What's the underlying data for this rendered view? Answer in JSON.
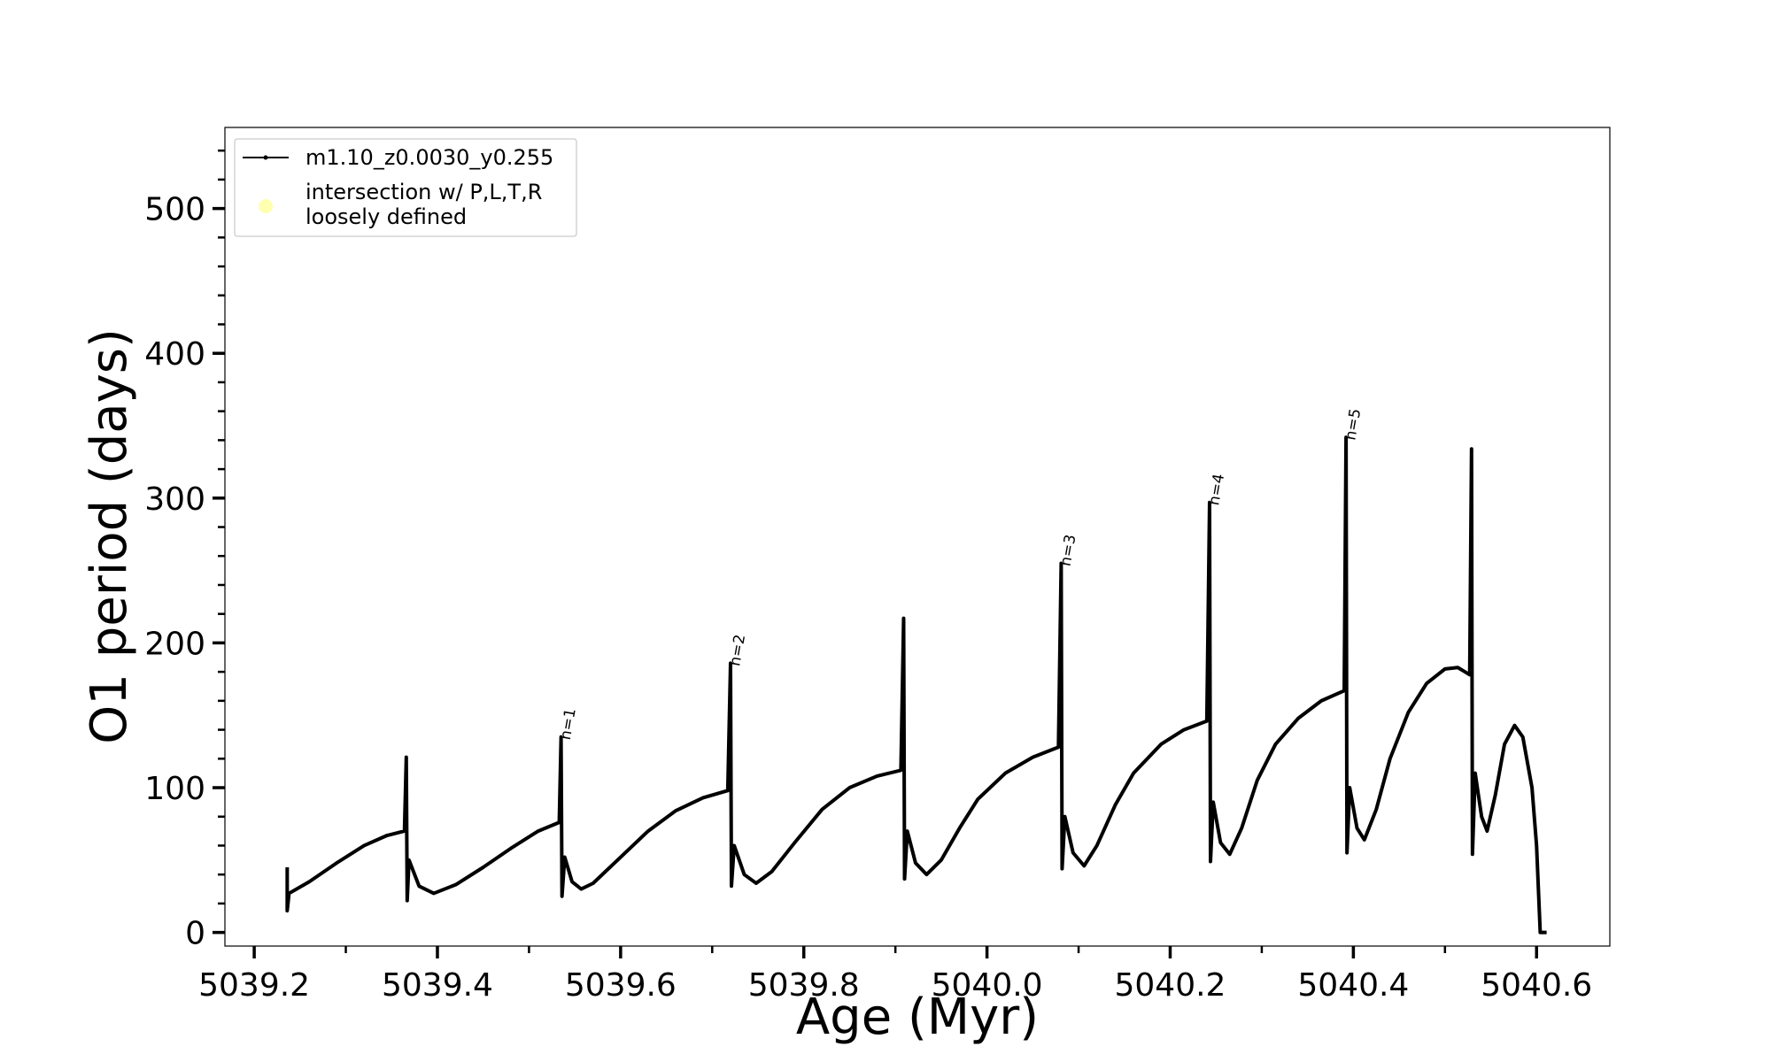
{
  "chart_data": {
    "type": "line",
    "xlabel": "Age (Myr)",
    "ylabel": "O1 period (days)",
    "xlim": [
      5039.168,
      5040.68
    ],
    "ylim": [
      -9.4,
      556
    ],
    "xticks": [
      5039.2,
      5039.4,
      5039.6,
      5039.8,
      {
        "value": 5040,
        "label": "5040.0"
      },
      5040.2,
      5040.4,
      5040.6
    ],
    "xminorticks": [
      5039.3,
      5039.5,
      5039.7,
      5039.9,
      5040.1,
      5040.3,
      5040.5
    ],
    "yticks": [
      0,
      100,
      200,
      300,
      400,
      500
    ],
    "yminorticks": [
      20,
      40,
      60,
      80,
      120,
      140,
      160,
      180,
      220,
      240,
      260,
      280,
      320,
      340,
      360,
      380,
      420,
      440,
      460,
      480,
      520,
      540
    ],
    "legend": "upper left",
    "series": [
      {
        "name": "m1.10_z0.0030_y0.255",
        "color": "#000000",
        "x": [
          5039.236,
          5039.236,
          5039.238,
          5039.26,
          5039.29,
          5039.32,
          5039.345,
          5039.364,
          5039.366,
          5039.367,
          5039.369,
          5039.38,
          5039.396,
          5039.42,
          5039.45,
          5039.48,
          5039.51,
          5039.533,
          5039.535,
          5039.536,
          5039.539,
          5039.547,
          5039.557,
          5039.57,
          5039.6,
          5039.63,
          5039.66,
          5039.69,
          5039.717,
          5039.72,
          5039.721,
          5039.724,
          5039.735,
          5039.748,
          5039.765,
          5039.79,
          5039.82,
          5039.85,
          5039.88,
          5039.906,
          5039.909,
          5039.91,
          5039.913,
          5039.922,
          5039.934,
          5039.95,
          5039.97,
          5039.99,
          5040.02,
          5040.05,
          5040.078,
          5040.081,
          5040.082,
          5040.085,
          5040.094,
          5040.106,
          5040.12,
          5040.14,
          5040.16,
          5040.19,
          5040.215,
          5040.24,
          5040.243,
          5040.244,
          5040.247,
          5040.255,
          5040.265,
          5040.278,
          5040.295,
          5040.315,
          5040.34,
          5040.365,
          5040.39,
          5040.392,
          5040.393,
          5040.396,
          5040.404,
          5040.412,
          5040.425,
          5040.44,
          5040.46,
          5040.48,
          5040.5,
          5040.514,
          5040.527,
          5040.529,
          5040.53,
          5040.533,
          5040.54,
          5040.546,
          5040.555,
          5040.565,
          5040.576,
          5040.585,
          5040.595,
          5040.6,
          5040.604,
          5040.611
        ],
        "values": [
          45,
          15,
          27,
          35,
          48,
          60,
          67,
          70,
          121,
          22,
          50,
          32,
          27,
          33,
          45,
          58,
          70,
          76,
          135,
          25,
          52,
          35,
          30,
          34,
          52,
          70,
          84,
          93,
          98,
          186,
          32,
          60,
          40,
          34,
          42,
          62,
          85,
          100,
          108,
          112,
          217,
          37,
          70,
          48,
          40,
          50,
          72,
          92,
          110,
          121,
          128,
          255,
          44,
          80,
          55,
          46,
          60,
          88,
          110,
          130,
          140,
          146,
          297,
          49,
          90,
          62,
          54,
          72,
          105,
          130,
          148,
          160,
          167,
          342,
          55,
          100,
          72,
          64,
          85,
          120,
          152,
          172,
          182,
          183,
          178,
          334,
          54,
          110,
          80,
          70,
          95,
          130,
          143,
          135,
          100,
          60,
          0,
          0
        ]
      },
      {
        "name": "intersection w/ P,L,T,R\nloosely defined",
        "color": "#ffffb0",
        "x": [],
        "values": []
      }
    ],
    "annotations": [
      {
        "text": "n=1",
        "x": 5039.535,
        "y": 135
      },
      {
        "text": "n=2",
        "x": 5039.72,
        "y": 186
      },
      {
        "text": "n=3",
        "x": 5040.081,
        "y": 255
      },
      {
        "text": "n=4",
        "x": 5040.243,
        "y": 297
      },
      {
        "text": "n=5",
        "x": 5040.392,
        "y": 342
      }
    ]
  }
}
